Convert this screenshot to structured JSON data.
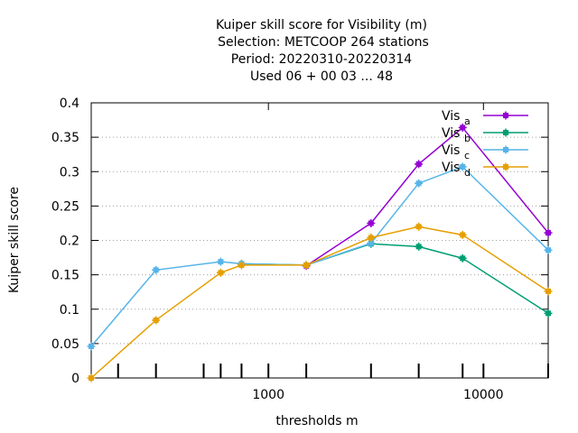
{
  "chart_data": {
    "type": "line",
    "title": "Kuiper skill score  for Visibility (m)",
    "subtitle_lines": [
      "Selection: METCOOP    264 stations",
      "Period: 20220310-20220314",
      "Used  06 + 00 03 ... 48"
    ],
    "xlabel": "thresholds m",
    "ylabel": "Kuiper skill score",
    "x_scale": "log",
    "xlim": [
      150,
      20000
    ],
    "ylim": [
      0,
      0.4
    ],
    "grid": "y-dashed",
    "legend_position": "top-right",
    "x_tick_labels": [
      "1000",
      "10000"
    ],
    "y_tick_labels": [
      "0",
      "0.05",
      "0.1",
      "0.15",
      "0.2",
      "0.25",
      "0.3",
      "0.35",
      "0.4"
    ],
    "x_ticks_no_label": [
      200,
      300,
      500,
      600,
      750,
      1000,
      1500,
      3000,
      5000,
      8000,
      10000,
      20000
    ],
    "series": [
      {
        "name": "Vis",
        "subscript": "a",
        "color": "#9400d3",
        "x": [
          1500,
          3000,
          5000,
          8000,
          20000
        ],
        "y": [
          0.163,
          0.225,
          0.311,
          0.364,
          0.211
        ]
      },
      {
        "name": "Vis",
        "subscript": "b",
        "color": "#009e73",
        "x": [
          750,
          1500,
          3000,
          5000,
          8000,
          20000
        ],
        "y": [
          0.166,
          0.164,
          0.195,
          0.191,
          0.174,
          0.094
        ]
      },
      {
        "name": "Vis",
        "subscript": "c",
        "color": "#56b4e9",
        "x": [
          150,
          300,
          600,
          750,
          1500,
          3000,
          5000,
          8000,
          20000
        ],
        "y": [
          0.046,
          0.157,
          0.169,
          0.166,
          0.164,
          0.196,
          0.283,
          0.307,
          0.186
        ]
      },
      {
        "name": "Vis",
        "subscript": "d",
        "color": "#e69f00",
        "x": [
          150,
          300,
          600,
          750,
          1500,
          3000,
          5000,
          8000,
          20000
        ],
        "y": [
          0.0,
          0.084,
          0.153,
          0.164,
          0.164,
          0.204,
          0.22,
          0.208,
          0.126
        ]
      }
    ]
  }
}
